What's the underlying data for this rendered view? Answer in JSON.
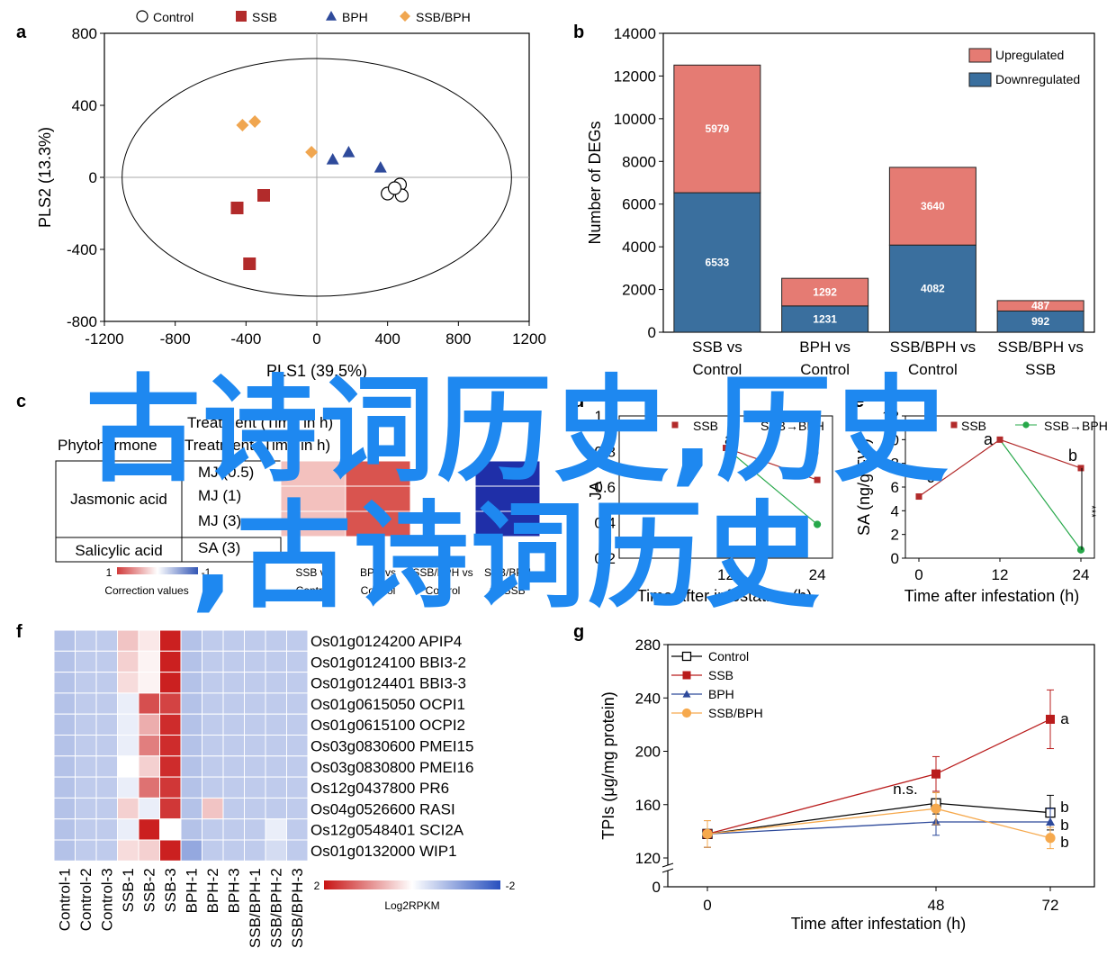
{
  "panels": {
    "a": "a",
    "b": "b",
    "c": "c",
    "d": "d",
    "e": "e",
    "f": "f",
    "g": "g"
  },
  "watermark": {
    "line1": "古诗词历史,历史",
    "line2": ",古诗词历史"
  },
  "chart_data": [
    {
      "id": "a",
      "type": "scatter",
      "xlabel": "PLS1 (39.5%)",
      "ylabel": "PLS2 (13.3%)",
      "xlim": [
        -1200,
        1200
      ],
      "ylim": [
        -800,
        800
      ],
      "xticks": [
        "-1200",
        "-800",
        "-400",
        "0",
        "400",
        "800",
        "1200"
      ],
      "yticks": [
        "800",
        "400",
        "0",
        "-400",
        "-800"
      ],
      "legend": [
        "Control",
        "SSB",
        "BPH",
        "SSB/BPH"
      ],
      "series": [
        {
          "name": "Control",
          "color": "#ffffff",
          "marker": "circle",
          "points": [
            [
              470,
              -40
            ],
            [
              400,
              -90
            ],
            [
              480,
              -100
            ],
            [
              440,
              -60
            ]
          ]
        },
        {
          "name": "SSB",
          "color": "#b22b2b",
          "marker": "square",
          "points": [
            [
              -300,
              -100
            ],
            [
              -450,
              -170
            ],
            [
              -380,
              -480
            ]
          ]
        },
        {
          "name": "BPH",
          "color": "#2e4a9b",
          "marker": "triangle",
          "points": [
            [
              90,
              100
            ],
            [
              180,
              140
            ],
            [
              360,
              55
            ]
          ]
        },
        {
          "name": "SSB/BPH",
          "color": "#f0a650",
          "marker": "diamond",
          "points": [
            [
              -420,
              290
            ],
            [
              -350,
              310
            ],
            [
              -30,
              140
            ]
          ]
        }
      ]
    },
    {
      "id": "b",
      "type": "bar",
      "stacked": true,
      "ylabel": "Number of DEGs",
      "ylim": [
        0,
        14000
      ],
      "yticks": [
        "14000",
        "12000",
        "10000",
        "8000",
        "6000",
        "4000",
        "2000",
        "0"
      ],
      "categories": [
        [
          "SSB vs",
          "Control"
        ],
        [
          "BPH vs",
          "Control"
        ],
        [
          "SSB/BPH vs",
          "Control"
        ],
        [
          "SSB/BPH vs",
          "SSB"
        ]
      ],
      "series": [
        {
          "name": "Downregulated",
          "color": "#3a6f9e",
          "values": [
            6533,
            1231,
            4082,
            992
          ]
        },
        {
          "name": "Upregulated",
          "color": "#e57b73",
          "values": [
            5979,
            1292,
            3640,
            487
          ]
        }
      ]
    },
    {
      "id": "c",
      "type": "table",
      "header": [
        "Phytohormone",
        "Treatment (Time in h)"
      ],
      "rows": [
        {
          "group": "Jasmonic acid",
          "item": "MJ (0.5)"
        },
        {
          "group": "Jasmonic acid",
          "item": "MJ (1)"
        },
        {
          "group": "Jasmonic acid",
          "item": "MJ (3)"
        },
        {
          "group": "Salicylic acid",
          "item": "SA (3)"
        }
      ],
      "columns": [
        [
          "SSB vs",
          "Control"
        ],
        [
          "BPH vs",
          "Control"
        ],
        [
          "SSB/BPH vs",
          "Control"
        ],
        [
          "SSB/BPH",
          "vs SSB"
        ]
      ],
      "cells": [
        [
          "#f3c1be",
          "#d9544f",
          "#ffffff",
          "#1f2fa8"
        ],
        [
          "#f3c1be",
          "#d9544f",
          "#ffffff",
          "#1f2fa8"
        ],
        [
          "#f3c1be",
          "#d9544f",
          "#ffffff",
          "#1f2fa8"
        ],
        [
          "#ffffff",
          "#ffffff",
          "#ffffff",
          "#ffffff"
        ]
      ],
      "colorbar": {
        "min_label": "1",
        "max_label": "-1",
        "title": "Correction values"
      }
    },
    {
      "id": "d",
      "type": "line",
      "xlabel": "Time after infestation (h)",
      "ylabel": "JA",
      "xticks": [
        "12",
        "24"
      ],
      "yticks": [
        "1.0",
        "0.8",
        "0.6",
        "0.4",
        "0.2"
      ],
      "legend": [
        "SSB",
        "SSB→BPH"
      ],
      "series": [
        {
          "name": "SSB",
          "color": "#b22b2b",
          "values": [
            [
              12,
              0.82
            ],
            [
              24,
              0.64
            ]
          ]
        },
        {
          "name": "SSB→BPH",
          "color": "#27a84a",
          "values": [
            [
              24,
              0.39
            ]
          ]
        }
      ],
      "annotations": [
        "a",
        "b"
      ]
    },
    {
      "id": "e",
      "type": "line",
      "xlabel": "Time after infestation (h)",
      "ylabel": "SA (ng/g FW)",
      "xticks": [
        "0",
        "12",
        "24"
      ],
      "yticks": [
        "0",
        "2",
        "4",
        "6",
        "8",
        "10",
        "12"
      ],
      "ylim": [
        0,
        12
      ],
      "legend": [
        "SSB",
        "SSB→BPH"
      ],
      "series": [
        {
          "name": "SSB",
          "color": "#b22b2b",
          "values": [
            [
              0,
              5.2
            ],
            [
              12,
              10.0
            ],
            [
              24,
              7.6
            ]
          ]
        },
        {
          "name": "SSB→BPH",
          "color": "#27a84a",
          "values": [
            [
              12,
              10.0
            ],
            [
              24,
              0.7
            ]
          ]
        }
      ],
      "annotations": [
        "c",
        "a",
        "b",
        "***"
      ]
    },
    {
      "id": "f",
      "type": "heatmap",
      "columns": [
        "Control-1",
        "Control-2",
        "Control-3",
        "SSB-1",
        "SSB-2",
        "SSB-3",
        "BPH-1",
        "BPH-2",
        "BPH-3",
        "SSB/BPH-1",
        "SSB/BPH-2",
        "SSB/BPH-3"
      ],
      "rows": [
        "Os01g0124200 APIP4",
        "Os01g0124100 BBI3-2",
        "Os01g0124401 BBI3-3",
        "Os01g0615050 OCPI1",
        "Os01g0615100 OCPI2",
        "Os03g0830600 PMEI15",
        "Os03g0830800 PMEI16",
        "Os12g0437800 PR6",
        "Os04g0526600 RASI",
        "Os12g0548401 SCI2A",
        "Os01g0132000 WIP1"
      ],
      "values": [
        [
          -0.7,
          -0.6,
          -0.6,
          0.5,
          0.2,
          1.9,
          -0.7,
          -0.6,
          -0.6,
          -0.6,
          -0.6,
          -0.6
        ],
        [
          -0.7,
          -0.6,
          -0.6,
          0.4,
          0.1,
          1.9,
          -0.7,
          -0.6,
          -0.6,
          -0.6,
          -0.6,
          -0.6
        ],
        [
          -0.7,
          -0.6,
          -0.6,
          0.3,
          0.1,
          1.9,
          -0.7,
          -0.6,
          -0.6,
          -0.6,
          -0.6,
          -0.6
        ],
        [
          -0.7,
          -0.6,
          -0.6,
          -0.2,
          1.5,
          1.6,
          -0.7,
          -0.6,
          -0.6,
          -0.6,
          -0.6,
          -0.6
        ],
        [
          -0.7,
          -0.6,
          -0.6,
          -0.2,
          0.7,
          1.8,
          -0.7,
          -0.6,
          -0.6,
          -0.6,
          -0.6,
          -0.6
        ],
        [
          -0.7,
          -0.6,
          -0.6,
          -0.2,
          1.1,
          1.8,
          -0.7,
          -0.6,
          -0.6,
          -0.6,
          -0.6,
          -0.6
        ],
        [
          -0.7,
          -0.6,
          -0.6,
          0.0,
          0.4,
          1.8,
          -0.7,
          -0.6,
          -0.6,
          -0.6,
          -0.6,
          -0.6
        ],
        [
          -0.7,
          -0.6,
          -0.6,
          -0.2,
          1.2,
          1.7,
          -0.7,
          -0.6,
          -0.6,
          -0.6,
          -0.6,
          -0.6
        ],
        [
          -0.7,
          -0.6,
          -0.6,
          0.4,
          -0.2,
          1.7,
          -0.7,
          0.5,
          -0.6,
          -0.6,
          -0.6,
          -0.6
        ],
        [
          -0.7,
          -0.6,
          -0.6,
          -0.2,
          1.9,
          0.0,
          -0.7,
          -0.6,
          -0.6,
          -0.6,
          -0.2,
          -0.6
        ],
        [
          -0.7,
          -0.6,
          -0.6,
          0.3,
          0.4,
          1.9,
          -1.0,
          -0.6,
          -0.6,
          -0.6,
          -0.4,
          -0.6
        ]
      ],
      "colorbar": {
        "max_label": "2",
        "min_label": "-2",
        "title": "Log2RPKM"
      }
    },
    {
      "id": "g",
      "type": "line",
      "xlabel": "Time after infestation (h)",
      "ylabel": "TPIs (μg/mg protein)",
      "x": [
        0,
        48,
        72
      ],
      "xticks": [
        "0",
        "48",
        "72"
      ],
      "yticks": [
        "280",
        "240",
        "200",
        "160",
        "120",
        "0"
      ],
      "ylim": [
        120,
        280
      ],
      "axis_break": true,
      "series": [
        {
          "name": "Control",
          "color": "#000000",
          "marker": "open-square",
          "values": [
            138,
            161,
            154
          ],
          "err": [
            10,
            8,
            13
          ]
        },
        {
          "name": "SSB",
          "color": "#b91c1c",
          "marker": "square",
          "values": [
            138,
            183,
            224
          ],
          "err": [
            10,
            13,
            22
          ]
        },
        {
          "name": "BPH",
          "color": "#2e4a9b",
          "marker": "triangle",
          "values": [
            138,
            147,
            147
          ],
          "err": [
            10,
            10,
            10
          ]
        },
        {
          "name": "SSB/BPH",
          "color": "#f6a94d",
          "marker": "circle",
          "values": [
            138,
            157,
            135
          ],
          "err": [
            10,
            12,
            8
          ]
        }
      ],
      "annotations": {
        "n_s": "n.s.",
        "labels": [
          "a",
          "b",
          "b",
          "b"
        ]
      }
    }
  ]
}
